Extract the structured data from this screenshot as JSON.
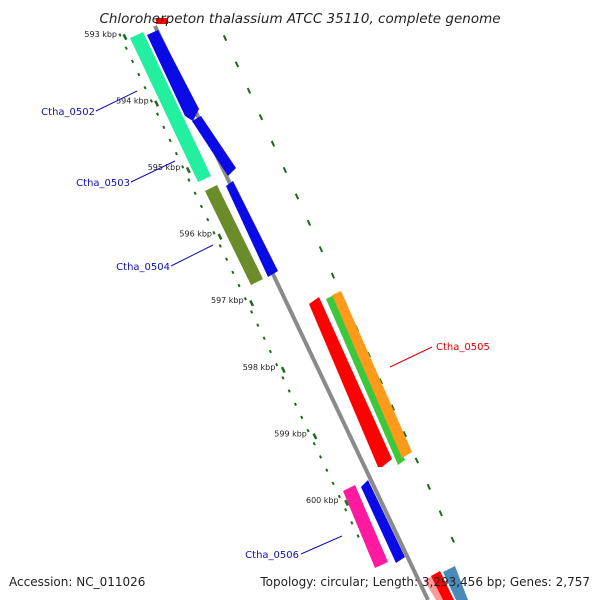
{
  "title": "Chloroherpeton thalassium ATCC 35110, complete genome",
  "footer": {
    "accession": "Accession: NC_011026",
    "summary": "Topology: circular; Length: 3,293,456 bp; Genes: 2,757"
  },
  "colors": {
    "backbone": "#8a8a8a",
    "tick": "#1a6b1a",
    "label_default": "#1010b0",
    "label_selected": "#dd0000",
    "forward_cds": "#0a0ae6",
    "aquamarine": "#22f0a0",
    "olive": "#6b8c2a",
    "red": "#ff0000",
    "green": "#3cc83c",
    "orange": "#ff9a1a",
    "magenta": "#ff1aa0",
    "steelblue": "#4a8ab8",
    "salmon": "#ff9a9a"
  },
  "ticks": [
    {
      "label": "593 kbp"
    },
    {
      "label": "594 kbp"
    },
    {
      "label": "595 kbp"
    },
    {
      "label": "596 kbp"
    },
    {
      "label": "597 kbp"
    },
    {
      "label": "598 kbp"
    },
    {
      "label": "599 kbp"
    },
    {
      "label": "600 kbp"
    }
  ],
  "genes": [
    {
      "label": "Ctha_0502",
      "selected": false
    },
    {
      "label": "Ctha_0503",
      "selected": false
    },
    {
      "label": "Ctha_0504",
      "selected": false
    },
    {
      "label": "Ctha_0505",
      "selected": true
    },
    {
      "label": "Ctha_0506",
      "selected": false
    }
  ]
}
